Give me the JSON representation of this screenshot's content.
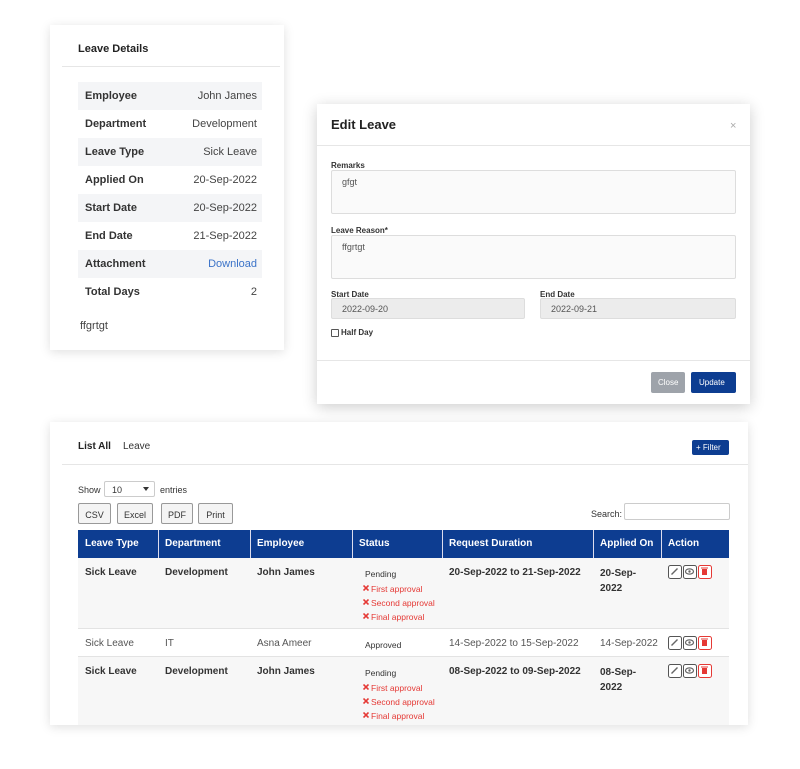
{
  "leave_details": {
    "title": "Leave Details",
    "rows": [
      {
        "label": "Employee",
        "value": "John James"
      },
      {
        "label": "Department",
        "value": "Development"
      },
      {
        "label": "Leave Type",
        "value": "Sick Leave"
      },
      {
        "label": "Applied On",
        "value": "20-Sep-2022"
      },
      {
        "label": "Start Date",
        "value": "20-Sep-2022"
      },
      {
        "label": "End Date",
        "value": "21-Sep-2022"
      },
      {
        "label": "Attachment",
        "value": "Download"
      },
      {
        "label": "Total Days",
        "value": "2"
      }
    ],
    "note": "ffgrtgt"
  },
  "edit_leave": {
    "title": "Edit Leave",
    "close_icon": "×",
    "remarks_label": "Remarks",
    "remarks": "gfgt",
    "reason_label": "Leave Reason*",
    "reason": "ffgrtgt",
    "start_label": "Start Date",
    "start": "2022-09-20",
    "end_label": "End Date",
    "end": "2022-09-21",
    "half_day": "Half Day",
    "close_button": "Close",
    "update_button": "Update"
  },
  "leave_list": {
    "title_bold": "List All",
    "title_rest": "Leave",
    "filter_button": "+ Filter",
    "show": "Show",
    "page_size": "10",
    "entries": "entries",
    "export_buttons": [
      "CSV",
      "Excel",
      "PDF",
      "Print"
    ],
    "search_label": "Search:",
    "columns": [
      "Leave Type",
      "Department",
      "Employee",
      "Status",
      "Request Duration",
      "Applied On",
      "Action"
    ],
    "rows": [
      {
        "leave_type": "Sick Leave",
        "department": "Development",
        "employee": "John James",
        "status": "Pending",
        "approvals": [
          "First approval",
          "Second approval",
          "Final approval"
        ],
        "duration": "20-Sep-2022 to 21-Sep-2022",
        "applied_on": "20-Sep-2022"
      },
      {
        "leave_type": "Sick Leave",
        "department": "IT",
        "employee": "Asna Ameer",
        "status": "Approved",
        "approvals": [],
        "duration": "14-Sep-2022 to 15-Sep-2022",
        "applied_on": "14-Sep-2022"
      },
      {
        "leave_type": "Sick Leave",
        "department": "Development",
        "employee": "John James",
        "status": "Pending",
        "approvals": [
          "First approval",
          "Second approval",
          "Final approval"
        ],
        "duration": "08-Sep-2022 to 09-Sep-2022",
        "applied_on": "08-Sep-2022"
      }
    ]
  }
}
